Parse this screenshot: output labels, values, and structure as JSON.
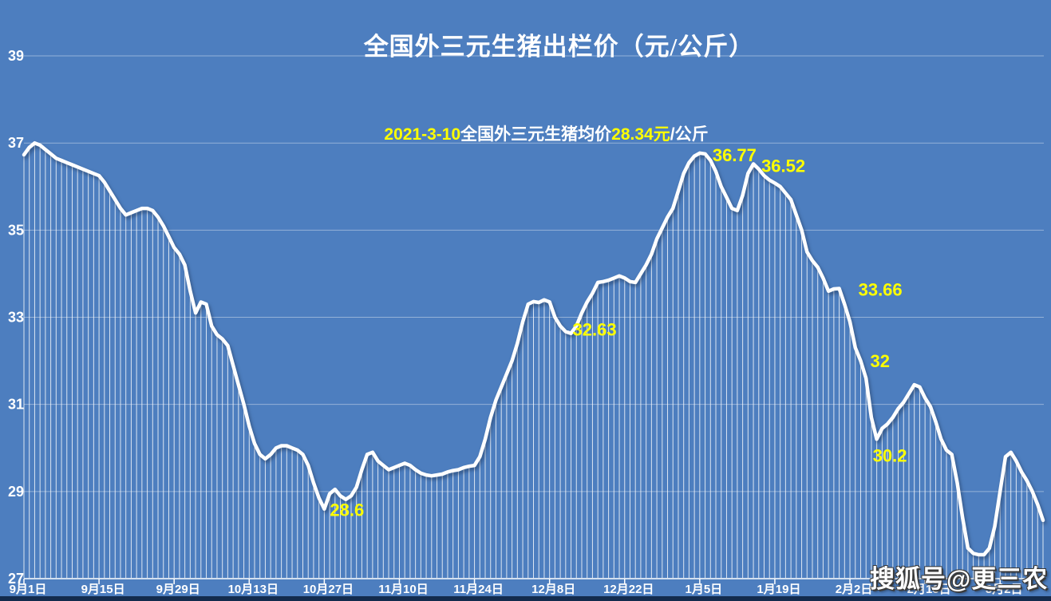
{
  "page": {
    "background_color": "#4d7ebf",
    "bottom_bar_color": "#132b4d"
  },
  "title": {
    "text": "全国外三元生猪出栏价（元/公斤）",
    "color": "#ffffff"
  },
  "subtitle": {
    "seg_date": "2021-3-10",
    "seg_label": "全国外三元生猪均价",
    "seg_price": "28.34元",
    "seg_unit": "/公斤",
    "highlight_color": "#ffff00",
    "base_color": "#ffffff"
  },
  "watermark": {
    "text": "搜狐号@更三农"
  },
  "chart_data": {
    "type": "line",
    "title": "全国外三元生猪出栏价（元/公斤）",
    "ylabel": "元/公斤",
    "ylim": [
      27,
      39
    ],
    "y_ticks": [
      39,
      37,
      35,
      33,
      31,
      29,
      27
    ],
    "grid": "horizontal",
    "drop_lines": true,
    "line_color": "#ffffff",
    "grid_color": "rgba(255,255,255,0.4)",
    "label_color": "#ffff00",
    "start_date": "9月1日",
    "end_date": "3月10日",
    "x_tick_labels": [
      "9月1日",
      "9月15日",
      "9月29日",
      "10月13日",
      "10月27日",
      "11月10日",
      "11月24日",
      "12月8日",
      "12月22日",
      "1月5日",
      "1月19日",
      "2月2日",
      "2月16日",
      "3月2日"
    ],
    "x_tick_days": [
      0,
      14,
      28,
      42,
      56,
      70,
      84,
      98,
      112,
      126,
      140,
      154,
      168,
      182
    ],
    "values": [
      36.73,
      36.9,
      37.0,
      36.95,
      36.85,
      36.75,
      36.65,
      36.6,
      36.55,
      36.5,
      36.45,
      36.4,
      36.35,
      36.3,
      36.25,
      36.1,
      35.9,
      35.7,
      35.5,
      35.35,
      35.4,
      35.45,
      35.5,
      35.5,
      35.45,
      35.3,
      35.1,
      34.85,
      34.6,
      34.45,
      34.2,
      33.6,
      33.1,
      33.35,
      33.3,
      32.8,
      32.6,
      32.5,
      32.35,
      31.9,
      31.45,
      31.0,
      30.5,
      30.1,
      29.85,
      29.75,
      29.85,
      30.0,
      30.05,
      30.05,
      30.0,
      29.95,
      29.85,
      29.6,
      29.2,
      28.85,
      28.6,
      28.95,
      29.05,
      28.9,
      28.82,
      28.9,
      29.1,
      29.5,
      29.85,
      29.9,
      29.7,
      29.6,
      29.5,
      29.55,
      29.6,
      29.65,
      29.6,
      29.5,
      29.42,
      29.38,
      29.36,
      29.38,
      29.4,
      29.45,
      29.48,
      29.5,
      29.55,
      29.58,
      29.6,
      29.8,
      30.2,
      30.7,
      31.1,
      31.4,
      31.7,
      32.0,
      32.4,
      32.9,
      33.3,
      33.36,
      33.34,
      33.4,
      33.35,
      33.0,
      32.8,
      32.67,
      32.63,
      32.8,
      33.1,
      33.35,
      33.55,
      33.8,
      33.82,
      33.85,
      33.9,
      33.95,
      33.9,
      33.82,
      33.8,
      34.0,
      34.2,
      34.45,
      34.8,
      35.05,
      35.3,
      35.5,
      35.9,
      36.3,
      36.55,
      36.7,
      36.77,
      36.75,
      36.6,
      36.35,
      36.0,
      35.75,
      35.5,
      35.45,
      35.8,
      36.3,
      36.52,
      36.4,
      36.25,
      36.15,
      36.08,
      36.0,
      35.85,
      35.7,
      35.35,
      35.0,
      34.5,
      34.3,
      34.15,
      33.9,
      33.6,
      33.65,
      33.66,
      33.3,
      32.9,
      32.3,
      32.0,
      31.6,
      30.7,
      30.2,
      30.45,
      30.55,
      30.7,
      30.9,
      31.05,
      31.25,
      31.45,
      31.4,
      31.15,
      30.95,
      30.6,
      30.2,
      29.95,
      29.85,
      29.2,
      28.4,
      27.7,
      27.58,
      27.55,
      27.55,
      27.7,
      28.2,
      29.0,
      29.8,
      29.9,
      29.7,
      29.45,
      29.25,
      29.0,
      28.7,
      28.34
    ],
    "point_labels": [
      {
        "text": "28.6",
        "day": 56,
        "value": 28.6
      },
      {
        "text": "32.63",
        "day": 102,
        "value": 32.63
      },
      {
        "text": "36.77",
        "day": 126,
        "value": 36.77
      },
      {
        "text": "36.52",
        "day": 136,
        "value": 36.52
      },
      {
        "text": "33.66",
        "day": 152,
        "value": 33.66
      },
      {
        "text": "32",
        "day": 156,
        "value": 32
      },
      {
        "text": "30.2",
        "day": 159,
        "value": 30.2
      }
    ]
  }
}
